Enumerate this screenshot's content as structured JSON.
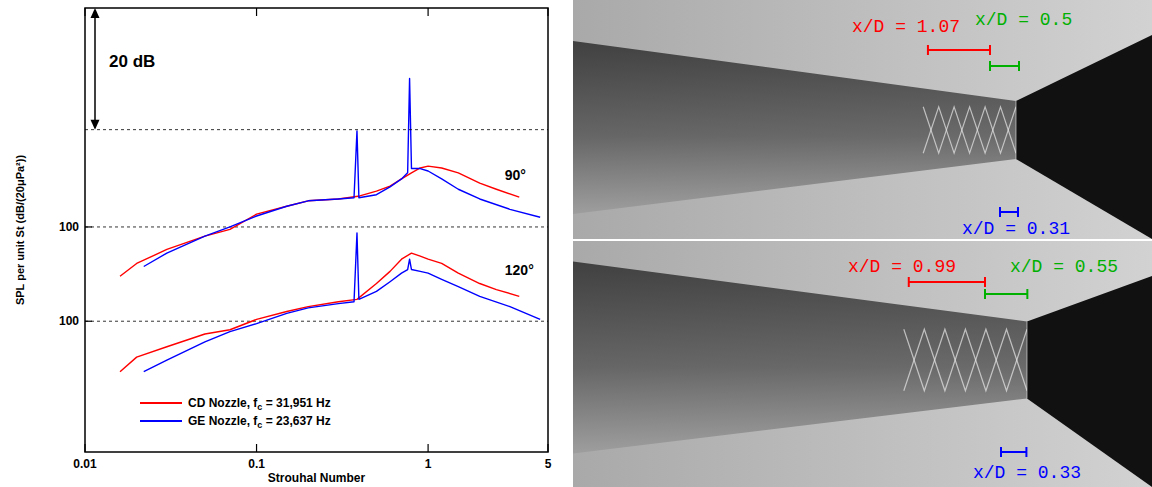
{
  "chart_data": {
    "type": "line",
    "x_label": "Strouhal Number",
    "y_label": "SPL per unit St (dB/(20μPa²))",
    "log": "x",
    "grid": true,
    "legend": "lower left",
    "xlim": [
      0.01,
      5
    ],
    "xticks": [
      0.01,
      0.1,
      1,
      5
    ],
    "ylim": [
      63,
      136
    ],
    "yticks": [
      100
    ],
    "y2lim": [
      78.5,
      151.5
    ],
    "y2ticks": [
      100
    ],
    "annotations": [
      {
        "text": "20 dB",
        "from": 116,
        "to": 136,
        "axis": "y"
      },
      {
        "text": "90°",
        "x": 2.8,
        "y": 107.7,
        "axis": "y"
      },
      {
        "text": "120°",
        "x": 2.8,
        "y": 107.6,
        "axis": "y2"
      }
    ],
    "series": [
      {
        "color": "#ff0000",
        "axis": "y",
        "x": [
          0.016,
          0.02,
          0.03,
          0.05,
          0.07,
          0.1,
          0.15,
          0.2,
          0.3,
          0.4,
          0.5,
          0.6,
          0.7,
          0.8,
          0.9,
          1.0,
          1.2,
          1.5,
          2,
          2.5,
          3.4
        ],
        "values": [
          91.9,
          94.0,
          96.3,
          98.5,
          99.6,
          102.1,
          103.4,
          104.3,
          104.6,
          105.1,
          105.9,
          106.7,
          107.9,
          108.9,
          109.7,
          110.0,
          109.7,
          108.9,
          107.2,
          106.2,
          104.9
        ]
      },
      {
        "color": "#0000ff",
        "axis": "y",
        "x": [
          0.022,
          0.03,
          0.05,
          0.07,
          0.1,
          0.15,
          0.2,
          0.3,
          0.37,
          0.385,
          0.395,
          0.5,
          0.6,
          0.7,
          0.76,
          0.78,
          0.8,
          0.9,
          1.0,
          1.2,
          1.5,
          2,
          3,
          4.5
        ],
        "values": [
          93.5,
          95.7,
          98.5,
          100.0,
          101.8,
          103.4,
          104.3,
          104.6,
          104.8,
          115.8,
          104.8,
          105.3,
          106.6,
          107.9,
          108.9,
          124.4,
          109.6,
          109.6,
          109.2,
          107.9,
          106.2,
          104.6,
          102.9,
          101.6
        ]
      },
      {
        "name": "CD Nozzle, fc = 31,951 Hz",
        "color": "#ff0000",
        "axis": "y2",
        "x": [
          0.016,
          0.02,
          0.03,
          0.05,
          0.07,
          0.1,
          0.15,
          0.2,
          0.3,
          0.385,
          0.5,
          0.6,
          0.7,
          0.8,
          0.9,
          1.0,
          1.2,
          1.5,
          2,
          2.5,
          3.4
        ],
        "values": [
          91.7,
          94.1,
          95.8,
          97.9,
          98.6,
          100.3,
          101.6,
          102.4,
          103.2,
          103.6,
          106.2,
          108.2,
          110.2,
          111.2,
          110.7,
          110.2,
          109.5,
          107.9,
          106.2,
          105.2,
          104.1
        ]
      },
      {
        "name": "GE Nozzle, fc = 23,637 Hz",
        "color": "#0000ff",
        "axis": "y2",
        "x": [
          0.022,
          0.03,
          0.05,
          0.07,
          0.1,
          0.15,
          0.2,
          0.3,
          0.37,
          0.385,
          0.395,
          0.5,
          0.6,
          0.7,
          0.76,
          0.78,
          0.8,
          0.9,
          1.0,
          1.2,
          1.5,
          2,
          3,
          4.5
        ],
        "values": [
          91.7,
          93.6,
          96.6,
          98.3,
          99.6,
          101.3,
          102.2,
          102.9,
          103.2,
          114.5,
          103.6,
          104.9,
          106.5,
          107.9,
          108.5,
          110.2,
          108.5,
          108.2,
          107.9,
          106.9,
          105.7,
          104.1,
          102.4,
          100.3
        ]
      }
    ]
  },
  "photos": [
    {
      "annotations": [
        {
          "label": "x/D = 1.07",
          "value": 1.07,
          "color": "#ff0000"
        },
        {
          "label": "x/D = 0.5",
          "value": 0.5,
          "color": "#00b000"
        },
        {
          "label": "x/D = 0.31",
          "value": 0.31,
          "color": "#0000ff"
        }
      ]
    },
    {
      "annotations": [
        {
          "label": "x/D = 0.99",
          "value": 0.99,
          "color": "#ff0000"
        },
        {
          "label": "x/D = 0.55",
          "value": 0.55,
          "color": "#00b000"
        },
        {
          "label": "x/D = 0.33",
          "value": 0.33,
          "color": "#0000ff"
        }
      ]
    }
  ]
}
